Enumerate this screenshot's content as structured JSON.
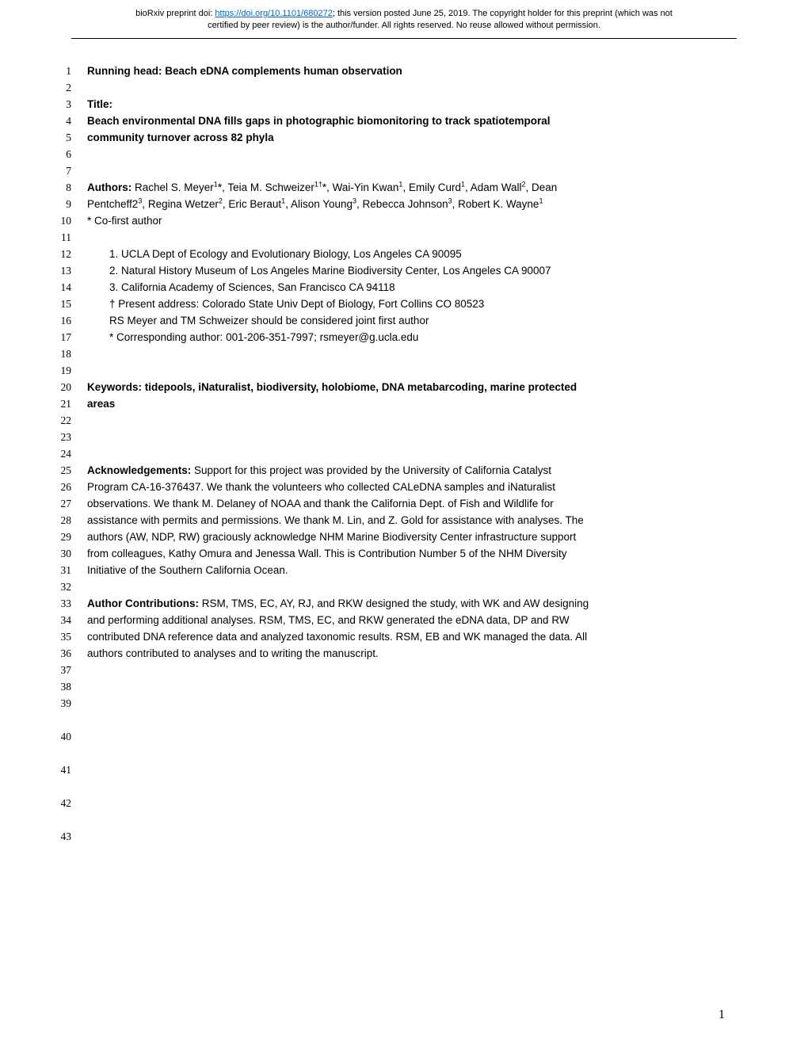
{
  "preprint": {
    "line1_prefix": "bioRxiv preprint doi: ",
    "doi_url": "https://doi.org/10.1101/680272",
    "line1_suffix": "; this version posted June 25, 2019. The copyright holder for this preprint (which was not",
    "line2": "certified by peer review) is the author/funder. All rights reserved. No reuse allowed without permission."
  },
  "line_numbers": [
    "1",
    "2",
    "3",
    "4",
    "5",
    "6",
    "7",
    "8",
    "9",
    "10",
    "11",
    "12",
    "13",
    "14",
    "15",
    "16",
    "17",
    "18",
    "19",
    "20",
    "21",
    "22",
    "23",
    "24",
    "25",
    "26",
    "27",
    "28",
    "29",
    "30",
    "31",
    "32",
    "33",
    "34",
    "35",
    "36",
    "37",
    "38",
    "39",
    "40",
    "41",
    "42",
    "43"
  ],
  "content": {
    "running_head": "Running head: Beach eDNA complements human observation",
    "title_label": "Title:",
    "title_line1": "Beach environmental DNA fills gaps in photographic biomonitoring to track spatiotemporal",
    "title_line2": "community turnover across 82 phyla",
    "authors_label": "Authors:",
    "authors_line1": " Rachel S. Meyer",
    "a_sup1": "1",
    "authors_star1": "*, Teia M. Schweizer",
    "a_sup2": "1†",
    "authors_star2": "*, Wai-Yin Kwan",
    "a_sup3": "1",
    "authors_c3": ", Emily Curd",
    "a_sup4": "1",
    "authors_c4": ", Adam Wall",
    "a_sup5": "2",
    "authors_c5": ", Dean",
    "authors_line2a": "Pentcheff2",
    "a_sup6": "3",
    "authors_c6": ", Regina Wetzer",
    "a_sup7": "2",
    "authors_c7": ", Eric Beraut",
    "a_sup8": "1",
    "authors_c8": ", Alison Young",
    "a_sup9": "3",
    "authors_c9": ", Rebecca Johnson",
    "a_sup10": "3",
    "authors_c10": ", Robert K. Wayne",
    "a_sup11": "1",
    "cofirst": "* Co-first author",
    "affil1": "1.   UCLA Dept of Ecology and Evolutionary Biology, Los Angeles CA 90095",
    "affil2": "2.   Natural History Museum of Los Angeles Marine Biodiversity Center, Los Angeles CA 90007",
    "affil3": "3.   California Academy of Sciences, San Francisco CA 94118",
    "present": "† Present address: Colorado State Univ Dept of Biology, Fort Collins CO 80523",
    "joint": "RS Meyer and TM Schweizer should be considered joint first author",
    "corresponding": "* Corresponding author: 001-206-351-7997; rsmeyer@g.ucla.edu",
    "keywords_line1": "Keywords: tidepools, iNaturalist, biodiversity, holobiome, DNA metabarcoding, marine protected",
    "keywords_line2": "areas",
    "ack_label": "Acknowledgements:",
    "ack_line1": " Support for this project was provided by the University of California Catalyst",
    "ack_line2": "Program CA-16-376437. We thank the volunteers who collected CALeDNA samples and iNaturalist",
    "ack_line3": "observations. We thank M. Delaney of NOAA and thank the California Dept. of Fish and Wildlife for",
    "ack_line4": "assistance with permits and permissions. We thank M. Lin, and Z. Gold for assistance with analyses. The",
    "ack_line5": "authors (AW, NDP, RW) graciously acknowledge NHM Marine Biodiversity Center infrastructure support",
    "ack_line6": "from colleagues, Kathy Omura and Jenessa Wall. This is Contribution Number 5 of the NHM Diversity",
    "ack_line7": "Initiative of the Southern California Ocean.",
    "contrib_label": "Author Contributions:",
    "contrib_line1": " RSM, TMS, EC, AY, RJ, and RKW designed the study, with WK and AW designing",
    "contrib_line2": "and performing additional analyses. RSM, TMS, EC, and RKW generated the eDNA data, DP and RW",
    "contrib_line3": "contributed DNA reference data and analyzed taxonomic results. RSM, EB and WK managed the data. All",
    "contrib_line4": "authors contributed to analyses and to writing the manuscript."
  },
  "page_number": "1"
}
